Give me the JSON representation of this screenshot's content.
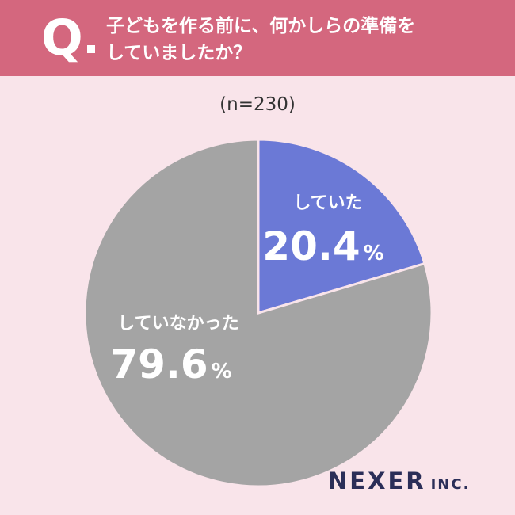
{
  "header": {
    "q_mark": "Q",
    "question_line1": "子どもを作る前に、何かしらの準備を",
    "question_line2": "していましたか？"
  },
  "sample_size": "(n=230)",
  "chart_data": {
    "type": "pie",
    "slices": [
      {
        "label": "していた",
        "value": 20.4,
        "value_text": "20.4",
        "unit": "%",
        "color": "#6b79d6"
      },
      {
        "label": "していなかった",
        "value": 79.6,
        "value_text": "79.6",
        "unit": "%",
        "color": "#a4a4a4"
      }
    ]
  },
  "logo": {
    "main": "NEXER",
    "suffix": "INC."
  }
}
